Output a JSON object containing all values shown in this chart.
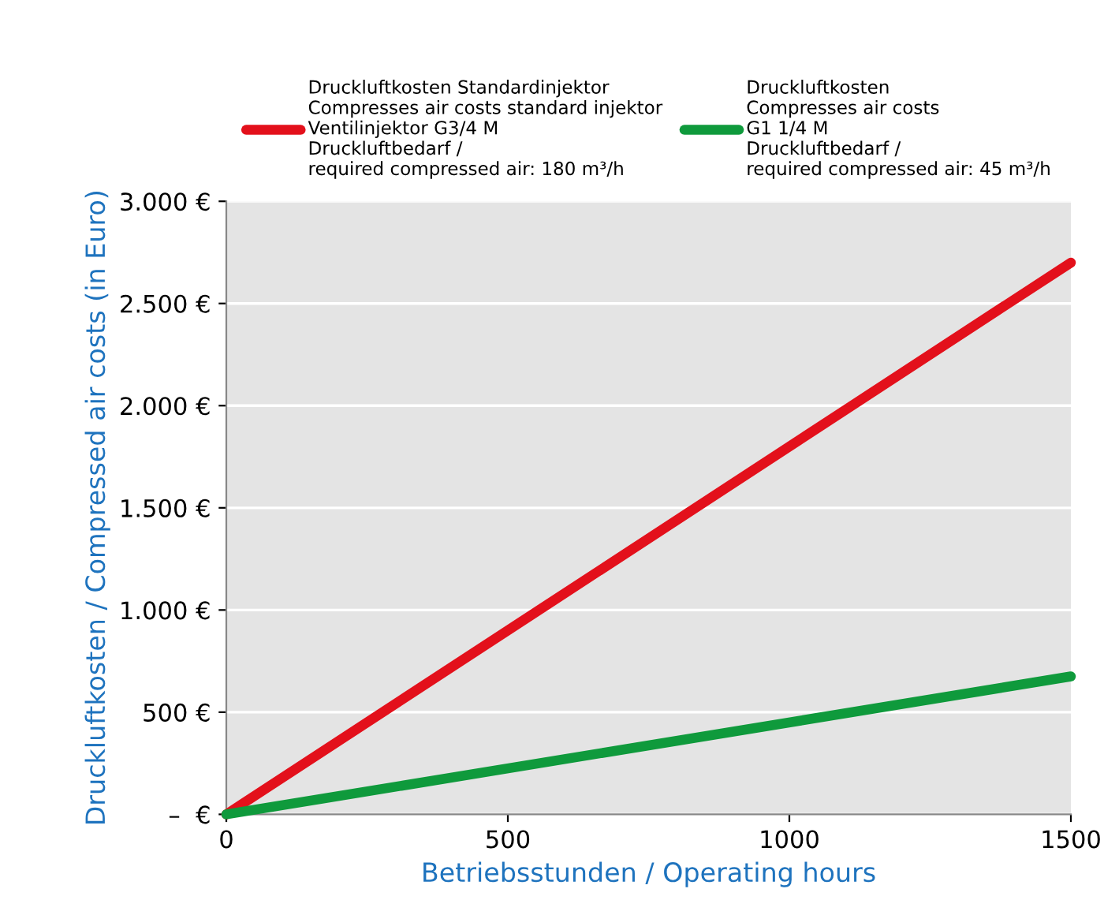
{
  "chart_data": {
    "type": "line",
    "xlabel": "Betriebsstunden / Operating hours",
    "ylabel": "Druckluftkosten / Compressed air costs (in Euro)",
    "x": [
      0,
      1500
    ],
    "series": [
      {
        "name": "Druckluftkosten Standardinjektor\nCompresses air costs standard injektor\nVentilinjektor G3/4 M\nDruckluftbedarf /\nrequired compressed air: 180 m³/h",
        "color": "#e3101b",
        "values": [
          0,
          2700
        ]
      },
      {
        "name": "Druckluftkosten\nCompresses air costs\nG1 1/4 M\nDruckluftbedarf /\nrequired compressed air: 45 m³/h",
        "color": "#0f9a3c",
        "values": [
          0,
          675
        ]
      }
    ],
    "xlim": [
      0,
      1500
    ],
    "xticks": [
      0,
      500,
      1000,
      1500
    ],
    "ylim": [
      0,
      3000
    ],
    "yticks": [
      {
        "value": 0,
        "label": "–  €"
      },
      {
        "value": 500,
        "label": "500 €"
      },
      {
        "value": 1000,
        "label": "1.000 €"
      },
      {
        "value": 1500,
        "label": "1.500 €"
      },
      {
        "value": 2000,
        "label": "2.000 €"
      },
      {
        "value": 2500,
        "label": "2.500 €"
      },
      {
        "value": 3000,
        "label": "3.000 €"
      }
    ],
    "grid": "y",
    "legend": "top",
    "marker": "none",
    "line_style": "solid"
  }
}
